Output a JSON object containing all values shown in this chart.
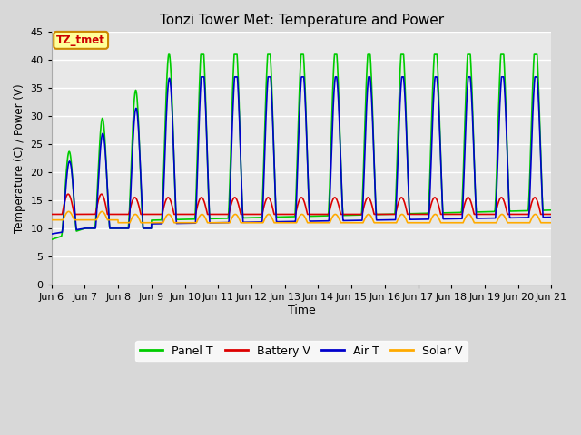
{
  "title": "Tonzi Tower Met: Temperature and Power",
  "xlabel": "Time",
  "ylabel": "Temperature (C) / Power (V)",
  "ylim": [
    0,
    45
  ],
  "yticks": [
    0,
    5,
    10,
    15,
    20,
    25,
    30,
    35,
    40,
    45
  ],
  "x_tick_days": [
    6,
    7,
    8,
    9,
    10,
    11,
    12,
    13,
    14,
    15,
    16,
    17,
    18,
    19,
    20,
    21
  ],
  "fig_bg_color": "#d8d8d8",
  "plot_bg_color": "#e8e8e8",
  "grid_color": "#ffffff",
  "colors": {
    "panel_t": "#00cc00",
    "battery_v": "#dd0000",
    "air_t": "#0000cc",
    "solar_v": "#ffaa00"
  },
  "legend_labels": [
    "Panel T",
    "Battery V",
    "Air T",
    "Solar V"
  ],
  "tz_label": "TZ_tmet",
  "tz_box_facecolor": "#ffff99",
  "tz_box_edgecolor": "#cc8800",
  "tz_text_color": "#cc0000",
  "linewidth": 1.2
}
